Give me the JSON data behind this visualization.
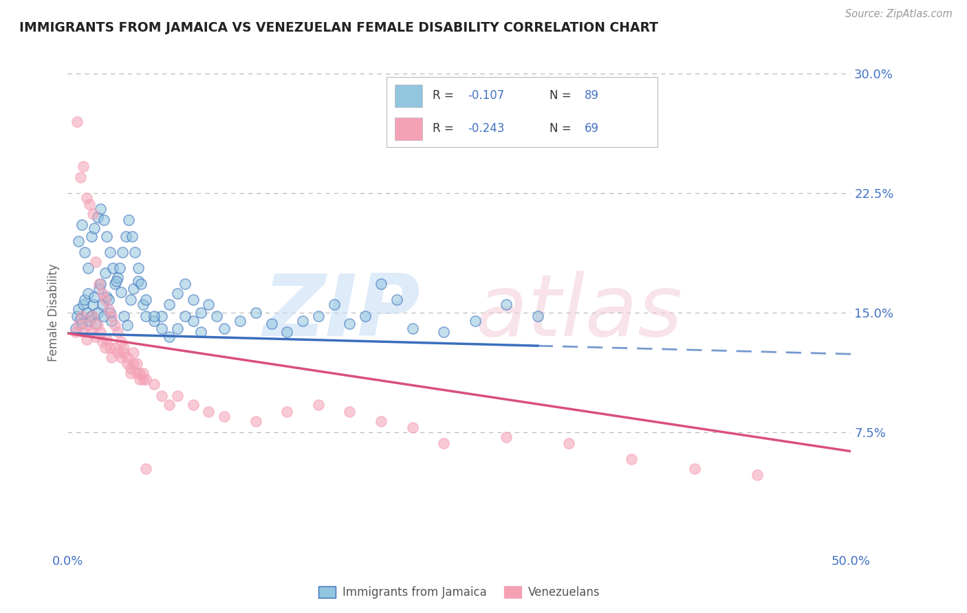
{
  "title": "IMMIGRANTS FROM JAMAICA VS VENEZUELAN FEMALE DISABILITY CORRELATION CHART",
  "source": "Source: ZipAtlas.com",
  "ylabel": "Female Disability",
  "xlim": [
    0.0,
    0.5
  ],
  "ylim": [
    0.0,
    0.3
  ],
  "xtick_labels": [
    "0.0%",
    "50.0%"
  ],
  "yticks": [
    0.075,
    0.15,
    0.225,
    0.3
  ],
  "ytick_labels": [
    "7.5%",
    "15.0%",
    "22.5%",
    "30.0%"
  ],
  "color_jamaica": "#92c5de",
  "color_venezuela": "#f4a0b5",
  "color_jamaica_line": "#3a6ebd",
  "color_venezuela_line": "#d9507a",
  "background_color": "#ffffff",
  "grid_color": "#bbbbbb",
  "title_color": "#222222",
  "axis_color": "#4472c4",
  "jamaica_line_start": 0.137,
  "jamaica_line_end_solid": 0.3,
  "jamaica_line_y_at_solid_end": 0.13,
  "jamaica_line_end_dashed": 0.5,
  "jamaica_line_y_at_dashed_end": 0.124,
  "venezuela_line_start_x": 0.0,
  "venezuela_line_start_y": 0.137,
  "venezuela_line_end_x": 0.5,
  "venezuela_line_end_y": 0.063,
  "jamaica_scatter_x": [
    0.005,
    0.006,
    0.007,
    0.008,
    0.009,
    0.01,
    0.011,
    0.012,
    0.013,
    0.014,
    0.015,
    0.016,
    0.017,
    0.018,
    0.019,
    0.02,
    0.021,
    0.022,
    0.023,
    0.024,
    0.025,
    0.026,
    0.027,
    0.028,
    0.03,
    0.032,
    0.034,
    0.036,
    0.038,
    0.04,
    0.042,
    0.045,
    0.048,
    0.05,
    0.055,
    0.06,
    0.065,
    0.07,
    0.075,
    0.08,
    0.085,
    0.09,
    0.095,
    0.1,
    0.11,
    0.12,
    0.13,
    0.14,
    0.15,
    0.16,
    0.17,
    0.18,
    0.19,
    0.2,
    0.21,
    0.22,
    0.24,
    0.26,
    0.28,
    0.3,
    0.007,
    0.009,
    0.011,
    0.013,
    0.015,
    0.017,
    0.019,
    0.021,
    0.023,
    0.025,
    0.027,
    0.029,
    0.031,
    0.033,
    0.035,
    0.037,
    0.039,
    0.041,
    0.043,
    0.045,
    0.047,
    0.05,
    0.055,
    0.06,
    0.065,
    0.07,
    0.075,
    0.08,
    0.085
  ],
  "jamaica_scatter_y": [
    0.14,
    0.148,
    0.152,
    0.146,
    0.143,
    0.155,
    0.158,
    0.15,
    0.162,
    0.145,
    0.148,
    0.155,
    0.16,
    0.143,
    0.15,
    0.165,
    0.168,
    0.155,
    0.148,
    0.175,
    0.16,
    0.158,
    0.15,
    0.145,
    0.168,
    0.172,
    0.163,
    0.148,
    0.142,
    0.158,
    0.165,
    0.17,
    0.155,
    0.148,
    0.145,
    0.148,
    0.155,
    0.162,
    0.168,
    0.145,
    0.138,
    0.155,
    0.148,
    0.14,
    0.145,
    0.15,
    0.143,
    0.138,
    0.145,
    0.148,
    0.155,
    0.143,
    0.148,
    0.168,
    0.158,
    0.14,
    0.138,
    0.145,
    0.155,
    0.148,
    0.195,
    0.205,
    0.188,
    0.178,
    0.198,
    0.203,
    0.21,
    0.215,
    0.208,
    0.198,
    0.188,
    0.178,
    0.17,
    0.178,
    0.188,
    0.198,
    0.208,
    0.198,
    0.188,
    0.178,
    0.168,
    0.158,
    0.148,
    0.14,
    0.135,
    0.14,
    0.148,
    0.158,
    0.15
  ],
  "venezuela_scatter_x": [
    0.005,
    0.007,
    0.009,
    0.01,
    0.012,
    0.013,
    0.015,
    0.016,
    0.018,
    0.019,
    0.021,
    0.022,
    0.024,
    0.025,
    0.027,
    0.028,
    0.03,
    0.032,
    0.034,
    0.036,
    0.038,
    0.04,
    0.042,
    0.044,
    0.046,
    0.048,
    0.05,
    0.055,
    0.06,
    0.065,
    0.07,
    0.08,
    0.09,
    0.1,
    0.12,
    0.14,
    0.16,
    0.18,
    0.2,
    0.22,
    0.24,
    0.28,
    0.32,
    0.36,
    0.4,
    0.44,
    0.006,
    0.008,
    0.01,
    0.012,
    0.014,
    0.016,
    0.018,
    0.02,
    0.022,
    0.024,
    0.026,
    0.028,
    0.03,
    0.032,
    0.034,
    0.036,
    0.038,
    0.04,
    0.042,
    0.044,
    0.046,
    0.048,
    0.05
  ],
  "venezuela_scatter_y": [
    0.138,
    0.142,
    0.148,
    0.138,
    0.133,
    0.142,
    0.138,
    0.148,
    0.135,
    0.142,
    0.138,
    0.132,
    0.128,
    0.133,
    0.128,
    0.122,
    0.128,
    0.125,
    0.122,
    0.125,
    0.118,
    0.112,
    0.118,
    0.112,
    0.108,
    0.112,
    0.108,
    0.105,
    0.098,
    0.092,
    0.098,
    0.092,
    0.088,
    0.085,
    0.082,
    0.088,
    0.092,
    0.088,
    0.082,
    0.078,
    0.068,
    0.072,
    0.068,
    0.058,
    0.052,
    0.048,
    0.27,
    0.235,
    0.242,
    0.222,
    0.218,
    0.212,
    0.182,
    0.168,
    0.162,
    0.158,
    0.152,
    0.148,
    0.142,
    0.138,
    0.132,
    0.128,
    0.122,
    0.115,
    0.125,
    0.118,
    0.112,
    0.108,
    0.052
  ]
}
